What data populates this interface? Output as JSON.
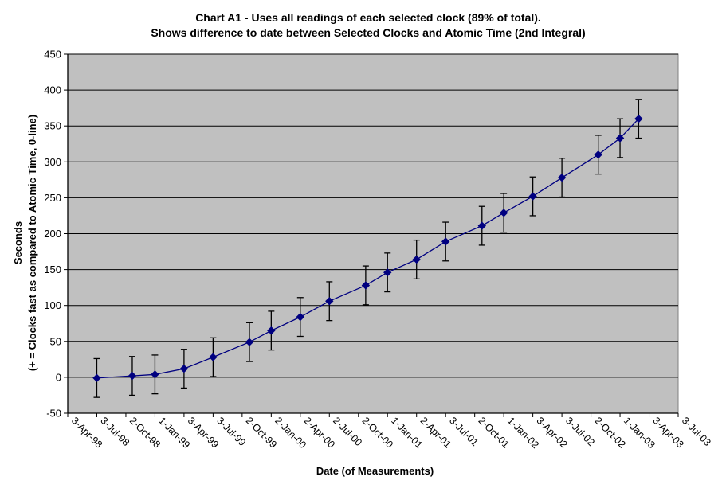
{
  "title": {
    "line1": "Chart A1 - Uses all readings of each selected clock (89% of total).",
    "line2": "Shows difference to date between Selected Clocks and Atomic Time (2nd Integral)"
  },
  "axes": {
    "y": {
      "title_line1": "Seconds",
      "title_line2": "(+ = Clocks fast as compared to Atomic Time, 0-line)",
      "min": -50,
      "max": 450,
      "step": 50,
      "tick_labels": [
        "450",
        "400",
        "350",
        "300",
        "250",
        "200",
        "150",
        "100",
        "50",
        "0",
        "-50"
      ]
    },
    "x": {
      "title": "Date (of Measurements)",
      "tick_labels": [
        "3-Apr-98",
        "3-Jul-98",
        "2-Oct-98",
        "1-Jan-99",
        "3-Apr-99",
        "3-Jul-99",
        "2-Oct-99",
        "2-Jan-00",
        "2-Apr-00",
        "2-Jul-00",
        "2-Oct-00",
        "1-Jan-01",
        "2-Apr-01",
        "3-Jul-01",
        "2-Oct-01",
        "1-Jan-02",
        "3-Apr-02",
        "3-Jul-02",
        "2-Oct-02",
        "1-Jan-03",
        "3-Apr-03",
        "3-Jul-03"
      ]
    }
  },
  "chart_data": {
    "type": "line",
    "title": "Chart A1 - Uses all readings of each selected clock (89% of total). Shows difference to date between Selected Clocks and Atomic Time (2nd Integral)",
    "xlabel": "Date (of Measurements)",
    "ylabel": "Seconds (+ = Clocks fast as compared to Atomic Time, 0-line)",
    "ylim": [
      -50,
      450
    ],
    "ytick_step": 50,
    "grid": true,
    "legend": false,
    "marker": "diamond",
    "error_bars": true,
    "categories": [
      "3-Apr-98",
      "3-Jul-98",
      "2-Oct-98",
      "1-Jan-99",
      "3-Apr-99",
      "3-Jul-99",
      "2-Oct-99",
      "2-Jan-00",
      "2-Apr-00",
      "2-Jul-00",
      "2-Oct-00",
      "1-Jan-01",
      "2-Apr-01",
      "3-Jul-01",
      "2-Oct-01",
      "1-Jan-02",
      "3-Apr-02",
      "3-Jul-02",
      "2-Oct-02",
      "1-Jan-03",
      "3-Apr-03",
      "3-Jul-03"
    ],
    "points": [
      {
        "x_tick": 1.0,
        "value": -1,
        "error": 27
      },
      {
        "x_tick": 2.22,
        "value": 2,
        "error": 27
      },
      {
        "x_tick": 3.0,
        "value": 4,
        "error": 27
      },
      {
        "x_tick": 4.0,
        "value": 12,
        "error": 27
      },
      {
        "x_tick": 5.0,
        "value": 28,
        "error": 27
      },
      {
        "x_tick": 6.25,
        "value": 49,
        "error": 27
      },
      {
        "x_tick": 7.0,
        "value": 65,
        "error": 27
      },
      {
        "x_tick": 8.0,
        "value": 84,
        "error": 27
      },
      {
        "x_tick": 9.0,
        "value": 106,
        "error": 27
      },
      {
        "x_tick": 10.25,
        "value": 128,
        "error": 27
      },
      {
        "x_tick": 11.0,
        "value": 146,
        "error": 27
      },
      {
        "x_tick": 12.0,
        "value": 164,
        "error": 27
      },
      {
        "x_tick": 13.0,
        "value": 189,
        "error": 27
      },
      {
        "x_tick": 14.25,
        "value": 211,
        "error": 27
      },
      {
        "x_tick": 15.0,
        "value": 229,
        "error": 27
      },
      {
        "x_tick": 16.0,
        "value": 252,
        "error": 27
      },
      {
        "x_tick": 17.0,
        "value": 278,
        "error": 27
      },
      {
        "x_tick": 18.25,
        "value": 310,
        "error": 27
      },
      {
        "x_tick": 19.0,
        "value": 333,
        "error": 27
      },
      {
        "x_tick": 19.64,
        "value": 360,
        "error": 27
      }
    ]
  },
  "colors": {
    "page_bg": "#ffffff",
    "plot_bg": "#c0c0c0",
    "plot_border": "#808080",
    "gridline": "#000000",
    "axis": "#000000",
    "series_line": "#000080",
    "marker": "#000080",
    "error_bar": "#000000",
    "text": "#000000"
  }
}
